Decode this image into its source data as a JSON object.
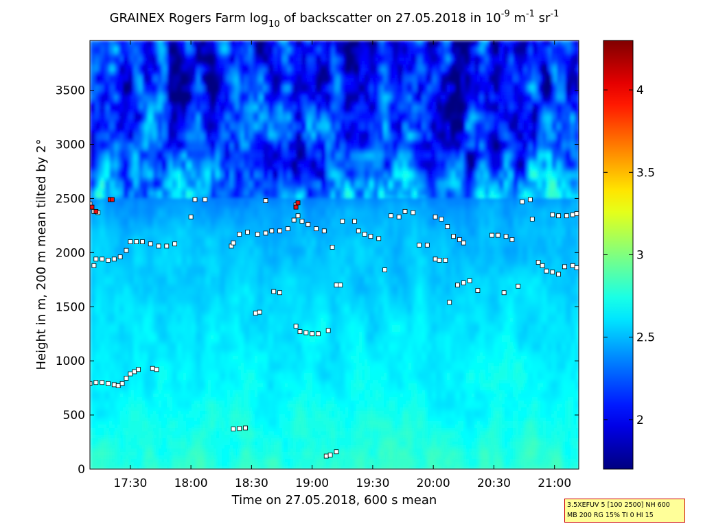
{
  "title": {
    "main": "GRAINEX Rogers Farm log",
    "sub10": "10",
    "mid": " of backscatter on 27.05.2018 in 10",
    "sup9": "-9",
    "unit_m": " m",
    "sup1a": "-1",
    "unit_sr": " sr",
    "sup1b": "-1"
  },
  "xlabel": "Time on 27.05.2018, 600 s mean",
  "ylabel": "Height in m, 200 m mean tilted by 2°",
  "infobox": {
    "line1": "3.5XEFUV 5 [100 2500] NH 600",
    "line2": "MB 200 RG 15% TI 0 HI 15"
  },
  "colors": {
    "low": "#000080",
    "high": "#800000",
    "marker_normal": "#ffffff",
    "marker_high": "#ee1111",
    "marker_edge": "#000000"
  },
  "chart_data": {
    "type": "heatmap",
    "x_axis": {
      "unit": "time",
      "range": [
        "17:10",
        "21:12"
      ],
      "ticks": [
        "17:30",
        "18:00",
        "18:30",
        "19:00",
        "19:30",
        "20:00",
        "20:30",
        "21:00"
      ]
    },
    "y_axis": {
      "unit": "m",
      "range": [
        0,
        3960
      ],
      "ticks": [
        0,
        500,
        1000,
        1500,
        2000,
        2500,
        3000,
        3500
      ]
    },
    "colorbar": {
      "range": [
        1.7,
        4.3
      ],
      "ticks": [
        2,
        2.5,
        3,
        3.5,
        4
      ],
      "colormap": "jet"
    },
    "field": {
      "description_values": "approx log10 backscatter by height band",
      "heights_m": [
        0,
        200,
        400,
        600,
        800,
        1000,
        1200,
        1400,
        1600,
        1800,
        2000,
        2200,
        2400,
        2600,
        2800,
        3000,
        3200,
        3400,
        3600,
        3800,
        3960
      ],
      "values": [
        2.78,
        2.74,
        2.72,
        2.68,
        2.66,
        2.65,
        2.63,
        2.61,
        2.58,
        2.55,
        2.53,
        2.5,
        2.44,
        2.32,
        2.15,
        2.05,
        2.02,
        2.0,
        2.0,
        2.0,
        2.0
      ]
    },
    "series": [
      {
        "name": "layer heights",
        "points": [
          [
            "17:10",
            790
          ],
          [
            "17:13",
            800
          ],
          [
            "17:16",
            800
          ],
          [
            "17:19",
            790
          ],
          [
            "17:22",
            780
          ],
          [
            "17:24",
            770
          ],
          [
            "17:26",
            790
          ],
          [
            "17:28",
            840
          ],
          [
            "17:30",
            880
          ],
          [
            "17:32",
            900
          ],
          [
            "17:34",
            920
          ],
          [
            "17:41",
            930
          ],
          [
            "17:43",
            920
          ],
          [
            "17:12",
            1880
          ],
          [
            "17:13",
            1940
          ],
          [
            "17:16",
            1940
          ],
          [
            "17:19",
            1930
          ],
          [
            "17:22",
            1940
          ],
          [
            "17:25",
            1960
          ],
          [
            "17:28",
            2020
          ],
          [
            "17:30",
            2100
          ],
          [
            "17:33",
            2100
          ],
          [
            "17:36",
            2100
          ],
          [
            "17:40",
            2080
          ],
          [
            "17:44",
            2060
          ],
          [
            "17:48",
            2060
          ],
          [
            "17:52",
            2080
          ],
          [
            "17:10",
            2450
          ],
          [
            "17:12",
            2380
          ],
          [
            "17:14",
            2370
          ],
          [
            "17:20",
            2490
          ],
          [
            "18:02",
            2490
          ],
          [
            "18:07",
            2490
          ],
          [
            "18:00",
            2330
          ],
          [
            "18:20",
            2060
          ],
          [
            "18:21",
            2090
          ],
          [
            "18:24",
            2170
          ],
          [
            "18:28",
            2190
          ],
          [
            "18:33",
            2170
          ],
          [
            "18:37",
            2180
          ],
          [
            "18:40",
            2200
          ],
          [
            "18:44",
            2200
          ],
          [
            "18:48",
            2220
          ],
          [
            "18:51",
            2300
          ],
          [
            "18:53",
            2340
          ],
          [
            "18:55",
            2290
          ],
          [
            "18:58",
            2260
          ],
          [
            "19:02",
            2220
          ],
          [
            "19:06",
            2200
          ],
          [
            "19:10",
            2050
          ],
          [
            "18:37",
            2480
          ],
          [
            "18:52",
            2440
          ],
          [
            "18:52",
            2420
          ],
          [
            "18:21",
            370
          ],
          [
            "18:24",
            375
          ],
          [
            "18:27",
            380
          ],
          [
            "18:32",
            1440
          ],
          [
            "18:34",
            1450
          ],
          [
            "18:41",
            1640
          ],
          [
            "18:44",
            1630
          ],
          [
            "18:52",
            1320
          ],
          [
            "18:54",
            1270
          ],
          [
            "18:57",
            1260
          ],
          [
            "19:00",
            1250
          ],
          [
            "19:03",
            1250
          ],
          [
            "19:08",
            1280
          ],
          [
            "19:07",
            120
          ],
          [
            "19:09",
            130
          ],
          [
            "19:12",
            160
          ],
          [
            "19:12",
            1700
          ],
          [
            "19:14",
            1700
          ],
          [
            "19:15",
            2290
          ],
          [
            "19:21",
            2290
          ],
          [
            "19:23",
            2200
          ],
          [
            "19:26",
            2170
          ],
          [
            "19:29",
            2150
          ],
          [
            "19:33",
            2130
          ],
          [
            "19:36",
            1840
          ],
          [
            "19:39",
            2340
          ],
          [
            "19:43",
            2330
          ],
          [
            "19:46",
            2380
          ],
          [
            "19:50",
            2370
          ],
          [
            "19:53",
            2070
          ],
          [
            "19:57",
            2070
          ],
          [
            "20:01",
            1940
          ],
          [
            "20:03",
            1930
          ],
          [
            "20:06",
            1930
          ],
          [
            "20:01",
            2330
          ],
          [
            "20:04",
            2310
          ],
          [
            "20:07",
            2240
          ],
          [
            "20:08",
            1540
          ],
          [
            "20:10",
            2150
          ],
          [
            "20:13",
            2120
          ],
          [
            "20:15",
            2090
          ],
          [
            "20:12",
            1700
          ],
          [
            "20:15",
            1720
          ],
          [
            "20:18",
            1740
          ],
          [
            "20:22",
            1650
          ],
          [
            "20:29",
            2160
          ],
          [
            "20:32",
            2160
          ],
          [
            "20:36",
            2150
          ],
          [
            "20:39",
            2120
          ],
          [
            "20:35",
            1630
          ],
          [
            "20:42",
            1690
          ],
          [
            "20:44",
            2470
          ],
          [
            "20:48",
            2490
          ],
          [
            "20:49",
            2310
          ],
          [
            "20:52",
            1910
          ],
          [
            "20:54",
            1880
          ],
          [
            "20:56",
            1830
          ],
          [
            "20:59",
            1820
          ],
          [
            "21:02",
            1800
          ],
          [
            "21:05",
            1870
          ],
          [
            "21:09",
            1880
          ],
          [
            "21:11",
            1860
          ],
          [
            "20:59",
            2350
          ],
          [
            "21:02",
            2340
          ],
          [
            "21:06",
            2340
          ],
          [
            "21:09",
            2350
          ],
          [
            "21:11",
            2360
          ]
        ]
      },
      {
        "name": "high backscatter",
        "points": [
          [
            "17:11",
            2420
          ],
          [
            "17:13",
            2380
          ],
          [
            "17:20",
            2490
          ],
          [
            "17:21",
            2490
          ],
          [
            "18:53",
            2460
          ],
          [
            "18:52",
            2420
          ]
        ]
      }
    ]
  }
}
